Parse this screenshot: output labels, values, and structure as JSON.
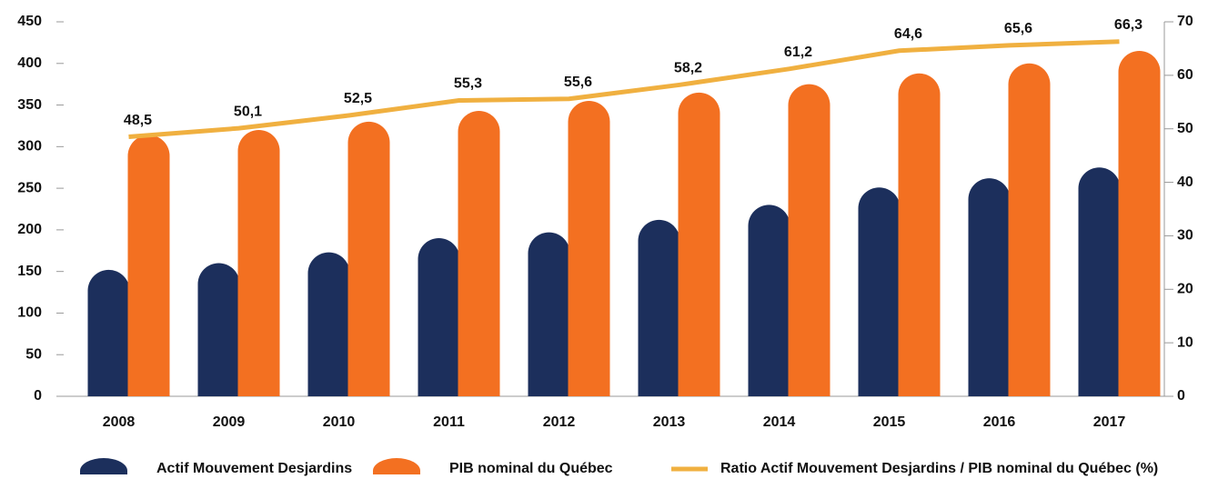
{
  "chart_data": {
    "type": "bar",
    "categories": [
      "2008",
      "2009",
      "2010",
      "2011",
      "2012",
      "2013",
      "2014",
      "2015",
      "2016",
      "2017"
    ],
    "series": [
      {
        "name": "Actif Mouvement Desjardins",
        "color": "#1c2f5c",
        "values": [
          152,
          160,
          173,
          190,
          197,
          212,
          230,
          251,
          262,
          275
        ]
      },
      {
        "name": "PIB nominal du Québec",
        "color": "#f37021",
        "values": [
          314,
          320,
          330,
          343,
          355,
          365,
          375,
          388,
          400,
          415
        ]
      },
      {
        "name": "Ratio Actif Mouvement Desjardins / PIB nominal du Québec (%)",
        "type": "line",
        "axis": "y2",
        "color": "#f0b040",
        "values": [
          48.5,
          50.1,
          52.5,
          55.3,
          55.6,
          58.2,
          61.2,
          64.6,
          65.6,
          66.3
        ],
        "value_labels": [
          "48,5",
          "50,1",
          "52,5",
          "55,3",
          "55,6",
          "58,2",
          "61,2",
          "64,6",
          "65,6",
          "66,3"
        ]
      }
    ],
    "ylim": [
      0,
      450
    ],
    "yticks": [
      0,
      50,
      100,
      150,
      200,
      250,
      300,
      350,
      400,
      450
    ],
    "y2lim": [
      0,
      70
    ],
    "y2ticks": [
      0,
      10,
      20,
      30,
      40,
      50,
      60,
      70
    ],
    "legend": "bottom"
  }
}
